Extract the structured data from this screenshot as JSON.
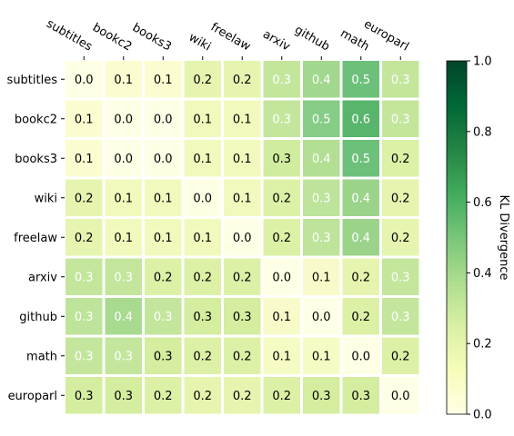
{
  "chart_data": {
    "type": "heatmap",
    "rows": [
      "subtitles",
      "bookc2",
      "books3",
      "wiki",
      "freelaw",
      "arxiv",
      "github",
      "math",
      "europarl"
    ],
    "columns": [
      "subtitles",
      "bookc2",
      "books3",
      "wiki",
      "freelaw",
      "arxiv",
      "github",
      "math",
      "europarl"
    ],
    "values": [
      [
        0.0,
        0.1,
        0.1,
        0.2,
        0.2,
        0.3,
        0.4,
        0.5,
        0.3
      ],
      [
        0.1,
        0.0,
        0.0,
        0.1,
        0.1,
        0.3,
        0.5,
        0.6,
        0.3
      ],
      [
        0.1,
        0.0,
        0.0,
        0.1,
        0.1,
        0.3,
        0.4,
        0.5,
        0.2
      ],
      [
        0.2,
        0.1,
        0.1,
        0.0,
        0.1,
        0.2,
        0.3,
        0.4,
        0.2
      ],
      [
        0.2,
        0.1,
        0.1,
        0.1,
        0.0,
        0.2,
        0.3,
        0.4,
        0.2
      ],
      [
        0.3,
        0.3,
        0.2,
        0.2,
        0.2,
        0.0,
        0.1,
        0.2,
        0.3
      ],
      [
        0.3,
        0.4,
        0.3,
        0.3,
        0.3,
        0.1,
        0.0,
        0.2,
        0.3
      ],
      [
        0.3,
        0.3,
        0.3,
        0.2,
        0.2,
        0.1,
        0.1,
        0.0,
        0.2
      ],
      [
        0.3,
        0.3,
        0.2,
        0.2,
        0.2,
        0.2,
        0.3,
        0.3,
        0.0
      ]
    ],
    "cell_colors": [
      [
        "#ffffe5",
        "#fbfdd0",
        "#fbfdd0",
        "#e5f5af",
        "#e5f5af",
        "#c3e69c",
        "#a2d78e",
        "#6cc07a",
        "#c3e69c"
      ],
      [
        "#fbfdd0",
        "#ffffe5",
        "#ffffe5",
        "#f2f9bd",
        "#f2f9bd",
        "#c3e69c",
        "#86cc85",
        "#58b56b",
        "#c3e69c"
      ],
      [
        "#fbfdd0",
        "#ffffe5",
        "#ffffe5",
        "#f2f9bd",
        "#f2f9bd",
        "#d0ec9f",
        "#b2df94",
        "#6cc07a",
        "#dcf1a6"
      ],
      [
        "#e5f5af",
        "#f2f9bd",
        "#f2f9bd",
        "#ffffe5",
        "#f2f9bd",
        "#dcf1a6",
        "#bde49a",
        "#9cd38b",
        "#e5f5af"
      ],
      [
        "#e5f5af",
        "#f2f9bd",
        "#f2f9bd",
        "#f2f9bd",
        "#ffffe5",
        "#dcf1a6",
        "#bde49a",
        "#9cd38b",
        "#e5f5af"
      ],
      [
        "#c3e69c",
        "#c3e69c",
        "#dcf1a6",
        "#dcf1a6",
        "#dcf1a6",
        "#ffffe5",
        "#f8fbc9",
        "#e5f5af",
        "#c3e69c"
      ],
      [
        "#bde49a",
        "#a8da90",
        "#c3e69c",
        "#d4ed9f",
        "#d4ed9f",
        "#f8fbc9",
        "#ffffe5",
        "#dcf1a6",
        "#c3e69c"
      ],
      [
        "#c3e69c",
        "#c3e69c",
        "#d4ed9f",
        "#dcf1a6",
        "#dcf1a6",
        "#f6fbc3",
        "#f6fbc3",
        "#ffffe5",
        "#dcf1a6"
      ],
      [
        "#d4ed9f",
        "#d4ed9f",
        "#dcf1a6",
        "#e5f5af",
        "#e5f5af",
        "#dcf1a6",
        "#d4ed9f",
        "#d4ed9f",
        "#ffffe5"
      ]
    ],
    "label_colors": [
      [
        "#000000",
        "#000000",
        "#000000",
        "#000000",
        "#000000",
        "#ffffff",
        "#ffffff",
        "#ffffff",
        "#ffffff"
      ],
      [
        "#000000",
        "#000000",
        "#000000",
        "#000000",
        "#000000",
        "#ffffff",
        "#ffffff",
        "#ffffff",
        "#ffffff"
      ],
      [
        "#000000",
        "#000000",
        "#000000",
        "#000000",
        "#000000",
        "#000000",
        "#ffffff",
        "#ffffff",
        "#000000"
      ],
      [
        "#000000",
        "#000000",
        "#000000",
        "#000000",
        "#000000",
        "#000000",
        "#ffffff",
        "#ffffff",
        "#000000"
      ],
      [
        "#000000",
        "#000000",
        "#000000",
        "#000000",
        "#000000",
        "#000000",
        "#ffffff",
        "#ffffff",
        "#000000"
      ],
      [
        "#ffffff",
        "#ffffff",
        "#000000",
        "#000000",
        "#000000",
        "#000000",
        "#000000",
        "#000000",
        "#ffffff"
      ],
      [
        "#ffffff",
        "#ffffff",
        "#ffffff",
        "#000000",
        "#000000",
        "#000000",
        "#000000",
        "#000000",
        "#ffffff"
      ],
      [
        "#ffffff",
        "#ffffff",
        "#000000",
        "#000000",
        "#000000",
        "#000000",
        "#000000",
        "#000000",
        "#000000"
      ],
      [
        "#000000",
        "#000000",
        "#000000",
        "#000000",
        "#000000",
        "#000000",
        "#000000",
        "#000000",
        "#000000"
      ]
    ],
    "colorbar": {
      "label": "KL Divergence",
      "range": [
        0.0,
        1.0
      ],
      "ticks": [
        "0.0",
        "0.2",
        "0.4",
        "0.6",
        "0.8",
        "1.0"
      ],
      "colormap": "YlGn",
      "stops": [
        "#ffffe5",
        "#f7fcb9",
        "#d9f0a3",
        "#addd8e",
        "#78c679",
        "#41ab5d",
        "#238443",
        "#006837",
        "#004529"
      ]
    },
    "column_labels_position": "top",
    "grid": false
  }
}
